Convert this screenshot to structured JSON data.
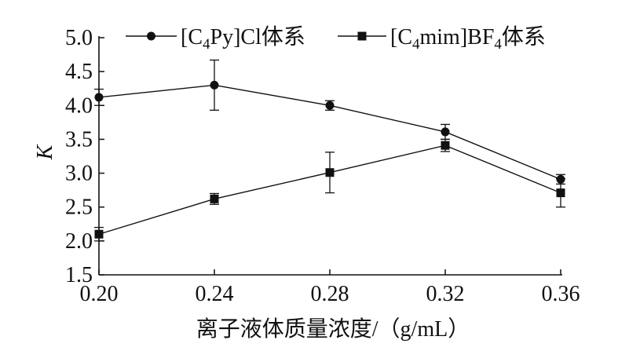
{
  "chart_data": {
    "type": "line",
    "title": "",
    "xlabel": "离子液体质量浓度/（g/mL）",
    "ylabel": "K",
    "x": [
      0.2,
      0.24,
      0.28,
      0.32,
      0.36
    ],
    "x_ticks": [
      "0.20",
      "0.24",
      "0.28",
      "0.32",
      "0.36"
    ],
    "y_ticks": [
      "1.5",
      "2.0",
      "2.5",
      "3.0",
      "3.5",
      "4.0",
      "4.5",
      "5.0"
    ],
    "xlim": [
      0.2,
      0.36
    ],
    "ylim": [
      1.5,
      5.0
    ],
    "grid": false,
    "legend_position": "top",
    "series": [
      {
        "legend_parts": [
          "[C",
          "4",
          "Py]Cl体系"
        ],
        "marker": "circle",
        "values": [
          4.12,
          4.3,
          4.0,
          3.61,
          2.91
        ],
        "errors": [
          0.12,
          0.37,
          0.07,
          0.11,
          0.07
        ]
      },
      {
        "legend_parts": [
          "[C",
          "4",
          "mim]BF",
          "4",
          "体系"
        ],
        "marker": "square",
        "values": [
          2.1,
          2.62,
          3.01,
          3.41,
          2.71
        ],
        "errors": [
          0.1,
          0.08,
          0.3,
          0.09,
          0.21
        ]
      }
    ],
    "colors": {
      "line": "#111111",
      "marker": "#111111"
    }
  }
}
